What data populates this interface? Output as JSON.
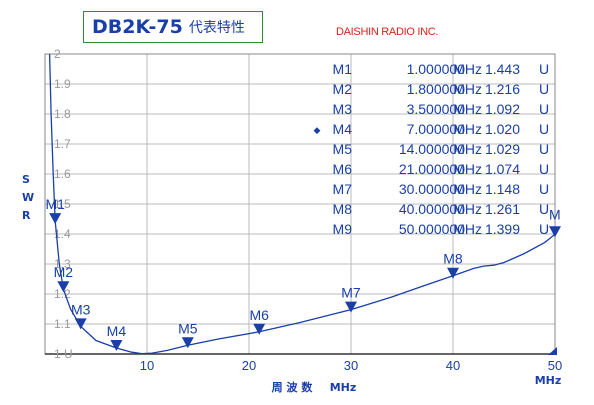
{
  "header": {
    "title": "DB2K-75",
    "subtitle": "代表特性",
    "company": "DAISHIN RADIO INC."
  },
  "colors": {
    "accent": "#1a3fa8",
    "curve": "#1a3fa8",
    "grid": "#bbbbbb",
    "title_border": "#2e8b3a",
    "company": "#e0201c",
    "marker_table": "#1a3fa8"
  },
  "chart_data": {
    "type": "line",
    "title": "DB2K-75 代表特性",
    "xlabel": "周 波 数",
    "xunit": "MHz",
    "ylabel": "SWR",
    "ylabel_letters": [
      "S",
      "W",
      "R"
    ],
    "xlim": [
      0,
      50
    ],
    "ylim": [
      1.0,
      2.0
    ],
    "x_ticks": [
      10,
      20,
      30,
      40,
      50
    ],
    "y_ticks": [
      {
        "v": 2.0,
        "label": "2"
      },
      {
        "v": 1.9,
        "label": "1.9"
      },
      {
        "v": 1.8,
        "label": "1.8"
      },
      {
        "v": 1.7,
        "label": "1.7"
      },
      {
        "v": 1.6,
        "label": "1.6"
      },
      {
        "v": 1.5,
        "label": "1.5"
      },
      {
        "v": 1.4,
        "label": "1.4"
      },
      {
        "v": 1.3,
        "label": "1.3"
      },
      {
        "v": 1.2,
        "label": "1.2"
      },
      {
        "v": 1.1,
        "label": "1.1"
      },
      {
        "v": 1.0,
        "label": "1 U"
      }
    ],
    "grid": true,
    "series": [
      {
        "x": [
          0.45,
          0.6,
          0.8,
          1.0,
          1.4,
          1.8,
          2.5,
          3.5,
          5.0,
          7.0,
          8.5,
          9.5,
          10.5,
          12.0,
          14.0,
          17.0,
          21.0,
          25.0,
          30.0,
          34.0,
          37.0,
          40.0,
          42.0,
          43.0,
          44.0,
          45.0,
          47.0,
          49.0,
          50.0
        ],
        "y": [
          2.0,
          1.8,
          1.6,
          1.443,
          1.3,
          1.216,
          1.15,
          1.092,
          1.045,
          1.02,
          1.006,
          1.001,
          1.003,
          1.012,
          1.029,
          1.05,
          1.074,
          1.105,
          1.148,
          1.19,
          1.226,
          1.261,
          1.285,
          1.293,
          1.296,
          1.305,
          1.335,
          1.372,
          1.399
        ]
      }
    ],
    "markers": [
      {
        "label": "M1",
        "mhz": "1.000000",
        "unit": "MHz",
        "swr": "1.443",
        "u": "U",
        "x": 1.0,
        "y": 1.443,
        "active": false
      },
      {
        "label": "M2",
        "mhz": "1.800000",
        "unit": "MHz",
        "swr": "1.216",
        "u": "U",
        "x": 1.8,
        "y": 1.216,
        "active": false
      },
      {
        "label": "M3",
        "mhz": "3.500000",
        "unit": "MHz",
        "swr": "1.092",
        "u": "U",
        "x": 3.5,
        "y": 1.092,
        "active": false
      },
      {
        "label": "M4",
        "mhz": "7.000000",
        "unit": "MHz",
        "swr": "1.020",
        "u": "U",
        "x": 7.0,
        "y": 1.02,
        "active": true
      },
      {
        "label": "M5",
        "mhz": "14.000000",
        "unit": "MHz",
        "swr": "1.029",
        "u": "U",
        "x": 14.0,
        "y": 1.029,
        "active": false
      },
      {
        "label": "M6",
        "mhz": "21.000000",
        "unit": "MHz",
        "swr": "1.074",
        "u": "U",
        "x": 21.0,
        "y": 1.074,
        "active": false
      },
      {
        "label": "M7",
        "mhz": "30.000000",
        "unit": "MHz",
        "swr": "1.148",
        "u": "U",
        "x": 30.0,
        "y": 1.148,
        "active": false
      },
      {
        "label": "M8",
        "mhz": "40.000000",
        "unit": "MHz",
        "swr": "1.261",
        "u": "U",
        "x": 40.0,
        "y": 1.261,
        "active": false
      },
      {
        "label": "M9",
        "mhz": "50.000000",
        "unit": "MHz",
        "swr": "1.399",
        "u": "U",
        "x": 50.0,
        "y": 1.399,
        "active": false
      }
    ],
    "marker_plot_labels": [
      "M1",
      "M2",
      "M3",
      "M4",
      "M5",
      "M6",
      "M7",
      "M8",
      "M"
    ]
  }
}
